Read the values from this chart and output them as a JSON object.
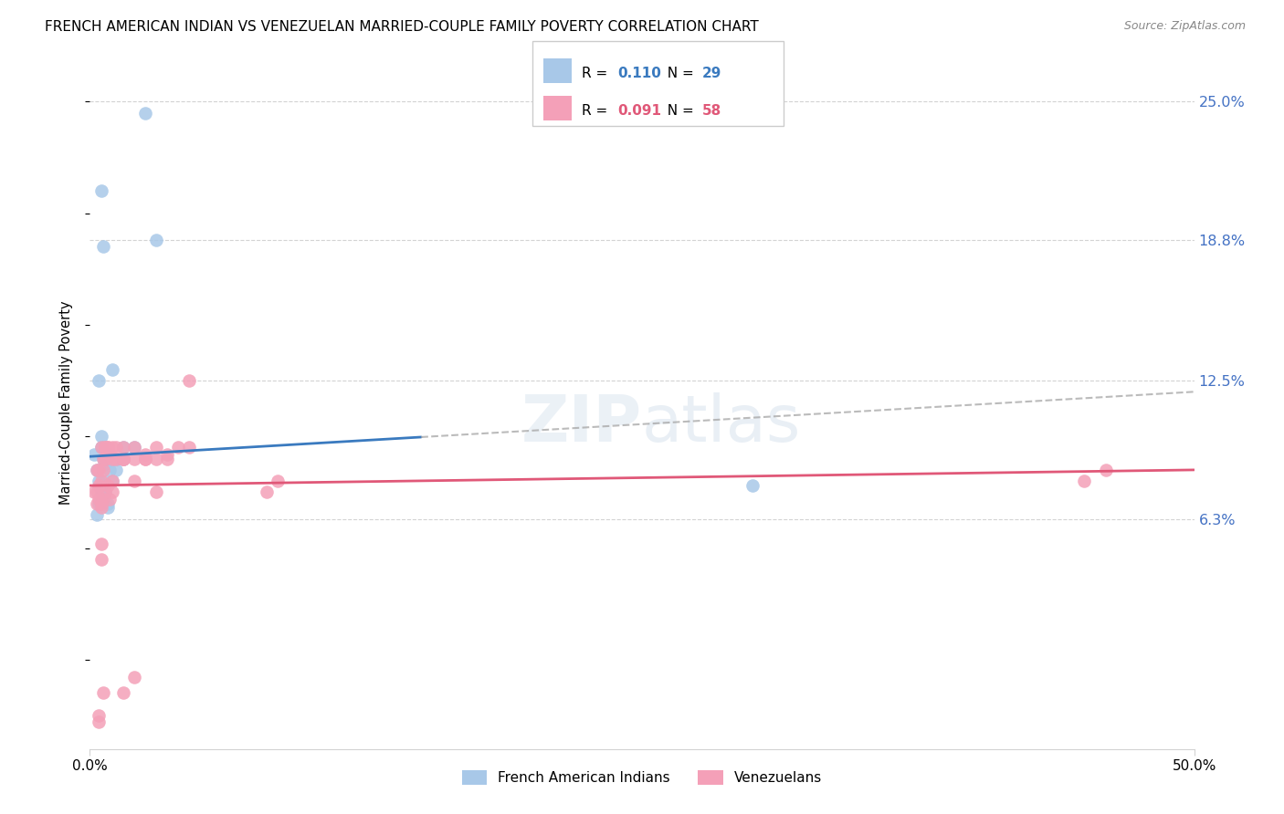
{
  "title": "FRENCH AMERICAN INDIAN VS VENEZUELAN MARRIED-COUPLE FAMILY POVERTY CORRELATION CHART",
  "source": "Source: ZipAtlas.com",
  "ylabel": "Married-Couple Family Poverty",
  "yticks": [
    6.3,
    12.5,
    18.8,
    25.0
  ],
  "ytick_labels": [
    "6.3%",
    "12.5%",
    "18.8%",
    "25.0%"
  ],
  "blue_R": "0.110",
  "blue_N": "29",
  "pink_R": "0.091",
  "pink_N": "58",
  "blue_color": "#a8c8e8",
  "pink_color": "#f4a0b8",
  "blue_line_color": "#3a7abf",
  "pink_line_color": "#e05878",
  "dash_color": "#aaaaaa",
  "xlim_min": 0,
  "xlim_max": 50,
  "ylim_min": -4,
  "ylim_max": 27,
  "blue_x": [
    0.2,
    0.3,
    0.4,
    0.5,
    0.5,
    0.6,
    0.7,
    0.8,
    0.9,
    1.0,
    1.2,
    1.5,
    2.0,
    2.5,
    3.0,
    0.3,
    0.4,
    0.5,
    0.6,
    0.7,
    0.8,
    0.4,
    0.5,
    1.0,
    0.6,
    1.5,
    0.8,
    1.2,
    30.0
  ],
  "blue_y": [
    9.2,
    8.5,
    8.0,
    9.5,
    10.0,
    9.0,
    8.8,
    9.2,
    8.5,
    8.0,
    8.5,
    9.0,
    9.5,
    24.5,
    18.8,
    6.5,
    7.0,
    7.5,
    8.0,
    7.5,
    7.0,
    12.5,
    21.0,
    13.0,
    18.5,
    9.5,
    6.8,
    9.0,
    7.8
  ],
  "pink_x": [
    0.2,
    0.3,
    0.3,
    0.4,
    0.4,
    0.5,
    0.5,
    0.6,
    0.6,
    0.7,
    0.7,
    0.8,
    0.9,
    1.0,
    1.0,
    1.2,
    1.2,
    1.5,
    1.5,
    2.0,
    2.0,
    2.5,
    2.5,
    3.0,
    3.0,
    3.5,
    4.0,
    4.5,
    0.3,
    0.4,
    0.5,
    0.5,
    0.6,
    0.7,
    0.8,
    0.9,
    1.0,
    1.5,
    2.0,
    2.5,
    3.0,
    3.5,
    4.5,
    0.5,
    0.5,
    0.7,
    1.0,
    1.5,
    2.0,
    8.0,
    8.5,
    45.0,
    46.0,
    0.4,
    0.4,
    0.6,
    0.8,
    1.5
  ],
  "pink_y": [
    7.5,
    7.0,
    8.5,
    7.8,
    8.5,
    9.5,
    8.0,
    9.0,
    8.5,
    9.5,
    9.0,
    9.5,
    9.2,
    9.5,
    9.0,
    9.5,
    9.0,
    9.5,
    9.0,
    9.5,
    9.0,
    9.2,
    9.0,
    9.5,
    9.0,
    9.2,
    9.5,
    12.5,
    7.5,
    7.2,
    7.0,
    6.8,
    7.2,
    7.5,
    7.8,
    7.2,
    8.0,
    9.0,
    8.0,
    9.0,
    7.5,
    9.0,
    9.5,
    5.2,
    4.5,
    9.5,
    7.5,
    -1.5,
    -0.8,
    7.5,
    8.0,
    8.0,
    8.5,
    -2.5,
    -2.8,
    -1.5,
    9.5,
    9.0
  ],
  "blue_solid_end": 15.0,
  "blue_line_x0": 0.0,
  "blue_line_x1": 50.0,
  "blue_line_y0": 9.1,
  "blue_line_y1": 12.0,
  "pink_line_x0": 0.0,
  "pink_line_x1": 50.0,
  "pink_line_y0": 7.8,
  "pink_line_y1": 8.5
}
